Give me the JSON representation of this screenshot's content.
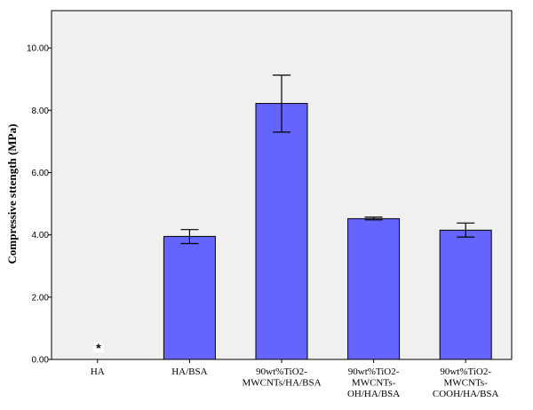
{
  "chart_data": {
    "type": "bar",
    "ylabel": "Compressive sttength (MPa)",
    "xlabel": "",
    "ylim": [
      0,
      11.2
    ],
    "yticks": [
      "0.00",
      "2.00",
      "4.00",
      "6.00",
      "8.00",
      "10.00"
    ],
    "grid": false,
    "categories": [
      [
        "HA"
      ],
      [
        "HA/BSA"
      ],
      [
        "90wt%TiO2-",
        "MWCNTs/HA/BSA"
      ],
      [
        "90wt%TiO2-",
        "MWCNTs-",
        "OH/HA/BSA"
      ],
      [
        "90wt%TiO2-",
        "MWCNTs-",
        "COOH/HA/BSA"
      ]
    ],
    "values": [
      null,
      3.95,
      8.22,
      4.52,
      4.15
    ],
    "error_low": [
      null,
      3.72,
      7.3,
      4.48,
      3.93
    ],
    "error_high": [
      null,
      4.17,
      9.13,
      4.57,
      4.38
    ],
    "annotations": [
      {
        "category_index": 0,
        "text": "*"
      }
    ],
    "colors": {
      "bar": "#6464ff",
      "background": "#f0f0f0"
    }
  }
}
